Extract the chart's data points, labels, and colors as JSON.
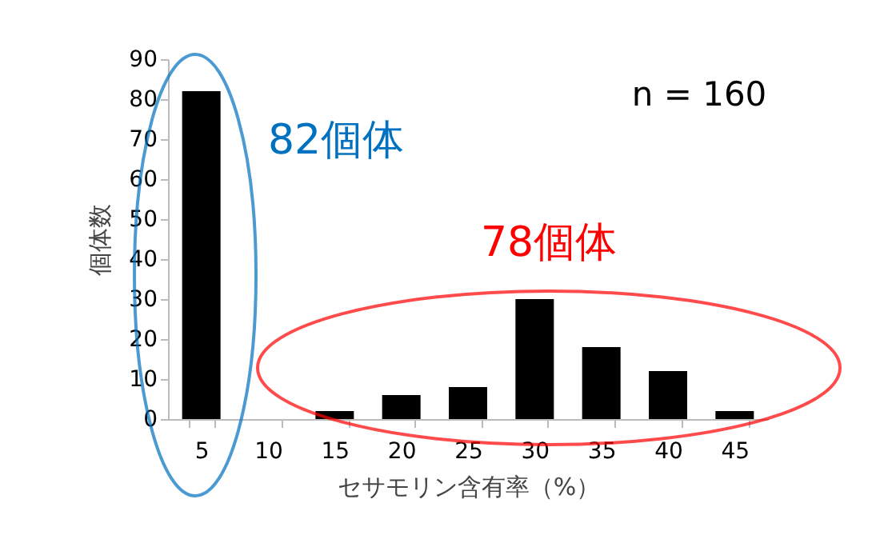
{
  "chart_data": {
    "type": "bar",
    "xlabel": "セサモリン含有率（%）",
    "ylabel": "個体数",
    "categories": [
      "5",
      "10",
      "15",
      "20",
      "25",
      "30",
      "35",
      "40",
      "45"
    ],
    "values": [
      82,
      0,
      2,
      6,
      8,
      30,
      18,
      12,
      2
    ],
    "color": "#000000",
    "ylim": [
      0,
      90
    ],
    "yticks": [
      0,
      10,
      20,
      30,
      40,
      50,
      60,
      70,
      80,
      90
    ],
    "grid": false,
    "annotations": [
      "82個体",
      "78個体",
      "n = 160"
    ]
  }
}
